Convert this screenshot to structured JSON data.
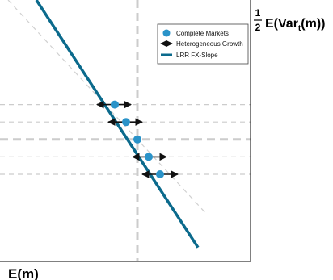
{
  "chart_data": {
    "type": "line",
    "title": "",
    "xlabel": "E(m)",
    "ylabel": {
      "fraction_numerator": "1",
      "fraction_denominator": "2",
      "expression_prefix": "E(Var",
      "expression_subscript": "t",
      "expression_suffix": "(m))"
    },
    "xlim": [
      -8,
      7
    ],
    "ylim": [
      -7,
      8
    ],
    "grid": false,
    "ticks_shown": false,
    "legend_position": "top-right",
    "legend": [
      {
        "label": "Complete Markets",
        "marker": "circle",
        "color": "#2a93c9"
      },
      {
        "label": "Heterogeneous Growth",
        "marker": "double-arrow",
        "color": "#111111"
      },
      {
        "label": "LRR FX-Slope",
        "marker": "thick-line",
        "color": "#0b6a8c"
      }
    ],
    "series": [
      {
        "name": "LRR FX-Slope",
        "kind": "line",
        "x": [
          -6.25,
          3.75
        ],
        "y": [
          8,
          -6.2
        ]
      },
      {
        "name": "Complete Markets",
        "kind": "points",
        "x": [
          -1.4,
          -0.7,
          0,
          0.7,
          1.4
        ],
        "y": [
          2,
          1,
          0,
          -1,
          -2
        ]
      },
      {
        "name": "Heterogeneous Growth",
        "kind": "horizontal-double-arrows",
        "y": [
          2,
          1,
          0,
          -1,
          -2
        ],
        "x_from": [
          -2.5,
          -1.8,
          null,
          -0.3,
          0.3
        ],
        "x_to": [
          -0.4,
          0.3,
          null,
          1.8,
          2.5
        ]
      }
    ],
    "reference_lines": {
      "diagonal_45deg": {
        "x": [
          -8,
          4.3
        ],
        "y": [
          8,
          -4.3
        ],
        "style": "dashed",
        "color": "#d0d0d0"
      },
      "vertical_x0": {
        "x": 0,
        "style": "dashed",
        "color": "#cccccc"
      },
      "horizontal_y0": {
        "y": 0,
        "style": "dashed",
        "color": "#cccccc"
      },
      "horizontal_guides_at_points": {
        "y": [
          2,
          1,
          -1,
          -2
        ],
        "style": "dashed",
        "color": "#cccccc"
      }
    },
    "colors": {
      "points": "#2a93c9",
      "line": "#0b6a8c",
      "arrows": "#111111",
      "reference": "#cccccc"
    }
  }
}
